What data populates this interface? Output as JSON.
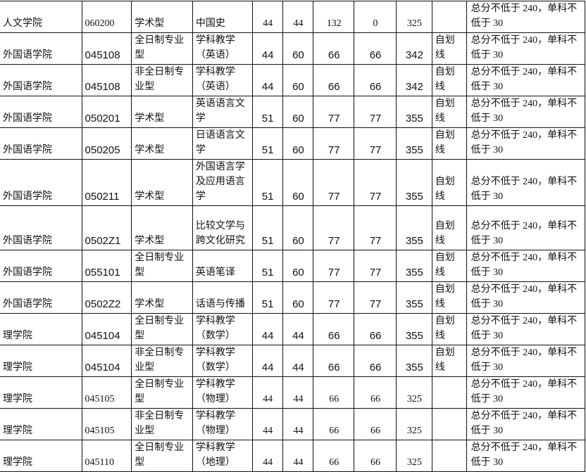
{
  "rows": [
    {
      "college": "人文学院",
      "code": "060200",
      "type": "学术型",
      "major": "中国史",
      "s1": "44",
      "s2": "44",
      "s3": "132",
      "s4": "0",
      "total": "325",
      "line": "",
      "note": "总分不低于 240，单科不低于 30",
      "bold": false,
      "h": 41
    },
    {
      "college": "外国语学院",
      "code": "045108",
      "type": "全日制专业型",
      "major": "学科教学（英语）",
      "s1": "44",
      "s2": "60",
      "s3": "66",
      "s4": "66",
      "total": "342",
      "line": "自划线",
      "note": "总分不低于 240，单科不低于 30",
      "bold": true,
      "h": 45
    },
    {
      "college": "外国语学院",
      "code": "045108",
      "type": "非全日制专业型",
      "major": "学科教学（英语）",
      "s1": "44",
      "s2": "60",
      "s3": "66",
      "s4": "66",
      "total": "342",
      "line": "自划线",
      "note": "总分不低于 240，单科不低于 30",
      "bold": true,
      "h": 44
    },
    {
      "college": "外国语学院",
      "code": "050201",
      "type": "学术型",
      "major": "英语语言文学",
      "s1": "51",
      "s2": "60",
      "s3": "77",
      "s4": "77",
      "total": "355",
      "line": "自划线",
      "note": "总分不低于 240，单科不低于 30",
      "bold": true,
      "h": 42
    },
    {
      "college": "外国语学院",
      "code": "050205",
      "type": "学术型",
      "major": "日语语言文学",
      "s1": "51",
      "s2": "60",
      "s3": "77",
      "s4": "77",
      "total": "355",
      "line": "自划线",
      "note": "总分不低于 240，单科不低于 30",
      "bold": true,
      "h": 43
    },
    {
      "college": "外国语学院",
      "code": "050211",
      "type": "学术型",
      "major": "外国语言学及应用语言学",
      "s1": "51",
      "s2": "60",
      "s3": "77",
      "s4": "77",
      "total": "355",
      "line": "自划线",
      "note": "总分不低于 240，单科不低于 30",
      "bold": true,
      "h": 63
    },
    {
      "college": "外国语学院",
      "code": "0502Z1",
      "type": "学术型",
      "major": "比较文学与跨文化研究",
      "s1": "51",
      "s2": "60",
      "s3": "77",
      "s4": "77",
      "total": "355",
      "line": "自划线",
      "note": "总分不低于 240，单科不低于 30",
      "bold": true,
      "h": 63
    },
    {
      "college": "外国语学院",
      "code": "055101",
      "type": "全日制专业型",
      "major": "英语笔译",
      "s1": "51",
      "s2": "60",
      "s3": "77",
      "s4": "77",
      "total": "355",
      "line": "自划线",
      "note": "总分不低于 240，单科不低于 30",
      "bold": true,
      "h": 42
    },
    {
      "college": "外国语学院",
      "code": "0502Z2",
      "type": "学术型",
      "major": "话语与传播",
      "s1": "51",
      "s2": "60",
      "s3": "77",
      "s4": "77",
      "total": "355",
      "line": "自划线",
      "note": "总分不低于 240，单科不低于 30",
      "bold": true,
      "h": 43
    },
    {
      "college": "理学院",
      "code": "045104",
      "type": "全日制专业型",
      "major": "学科教学（数学）",
      "s1": "44",
      "s2": "44",
      "s3": "66",
      "s4": "66",
      "total": "355",
      "line": "自划线",
      "note": "总分不低于 240，单科不低于 30",
      "bold": true,
      "h": 44
    },
    {
      "college": "理学院",
      "code": "045104",
      "type": "非全日制专业型",
      "major": "学科教学（数学）",
      "s1": "44",
      "s2": "44",
      "s3": "66",
      "s4": "66",
      "total": "355",
      "line": "自划线",
      "note": "总分不低于 240，单科不低于 30",
      "bold": true,
      "h": 43
    },
    {
      "college": "理学院",
      "code": "045105",
      "type": "全日制专业型",
      "major": "学科教学（物理）",
      "s1": "44",
      "s2": "44",
      "s3": "66",
      "s4": "66",
      "total": "325",
      "line": "",
      "note": "总分不低于 240，单科不低于 30",
      "bold": false,
      "h": 43
    },
    {
      "college": "理学院",
      "code": "045105",
      "type": "非全日制专业型",
      "major": "学科教学（物理）",
      "s1": "44",
      "s2": "44",
      "s3": "66",
      "s4": "66",
      "total": "325",
      "line": "",
      "note": "总分不低于 240，单科不低于 30",
      "bold": false,
      "h": 42
    },
    {
      "college": "理学院",
      "code": "045110",
      "type": "全日制专业型",
      "major": "学科教学（地理）",
      "s1": "44",
      "s2": "44",
      "s3": "66",
      "s4": "66",
      "total": "325",
      "line": "",
      "note": "总分不低于 240，单科不低于 30",
      "bold": false,
      "h": 42
    }
  ]
}
